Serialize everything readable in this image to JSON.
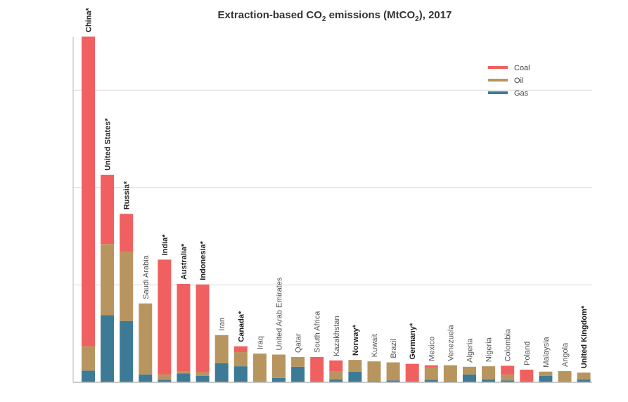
{
  "chart_data": {
    "type": "bar",
    "stacked": true,
    "title": "Extraction-based CO2 emissions (MtCO2), 2017",
    "title_parts": [
      "Extraction-based CO",
      "2",
      " emissions (MtCO",
      "2",
      "), 2017"
    ],
    "xlabel": "",
    "ylabel": "",
    "ylim": [
      0,
      3550
    ],
    "grid": true,
    "gridlines": [
      1000,
      2000,
      3000
    ],
    "legend_placement": "top-right",
    "categories": [
      "China*",
      "United States*",
      "Russia*",
      "Saudi Arabia",
      "India*",
      "Australia*",
      "Indonesia*",
      "Iran",
      "Canada*",
      "Iraq",
      "United Arab Emirates",
      "Qatar",
      "South Africa",
      "Kazakhstan",
      "Norway*",
      "Kuwait",
      "Brazil",
      "Germany*",
      "Mexico",
      "Venezuela",
      "Algeria",
      "Nigeria",
      "Colombia",
      "Poland",
      "Malaysia",
      "Angola",
      "United Kingdom*"
    ],
    "bold_categories": [
      "China*",
      "United States*",
      "Russia*",
      "India*",
      "Australia*",
      "Indonesia*",
      "Canada*",
      "Norway*",
      "Germany*",
      "United Kingdom*"
    ],
    "series": [
      {
        "name": "Gas",
        "color": "#3d7a96",
        "values": [
          120,
          690,
          630,
          80,
          25,
          90,
          65,
          195,
          165,
          5,
          45,
          160,
          0,
          30,
          110,
          10,
          20,
          0,
          25,
          10,
          80,
          30,
          20,
          0,
          65,
          0,
          30
        ]
      },
      {
        "name": "Oil",
        "color": "#b8955f",
        "values": [
          250,
          730,
          710,
          730,
          55,
          20,
          40,
          290,
          145,
          290,
          240,
          100,
          0,
          85,
          120,
          205,
          185,
          5,
          130,
          165,
          80,
          135,
          60,
          0,
          45,
          115,
          70
        ]
      },
      {
        "name": "Coal",
        "color": "#f06060",
        "values": [
          3180,
          710,
          390,
          0,
          1180,
          900,
          900,
          0,
          60,
          0,
          0,
          0,
          260,
          110,
          0,
          0,
          0,
          185,
          20,
          0,
          0,
          0,
          90,
          130,
          0,
          0,
          0
        ]
      }
    ],
    "legend_order": [
      "Coal",
      "Oil",
      "Gas"
    ],
    "axis_color": "#b9b9b9",
    "grid_color": "#d8d8d8"
  }
}
